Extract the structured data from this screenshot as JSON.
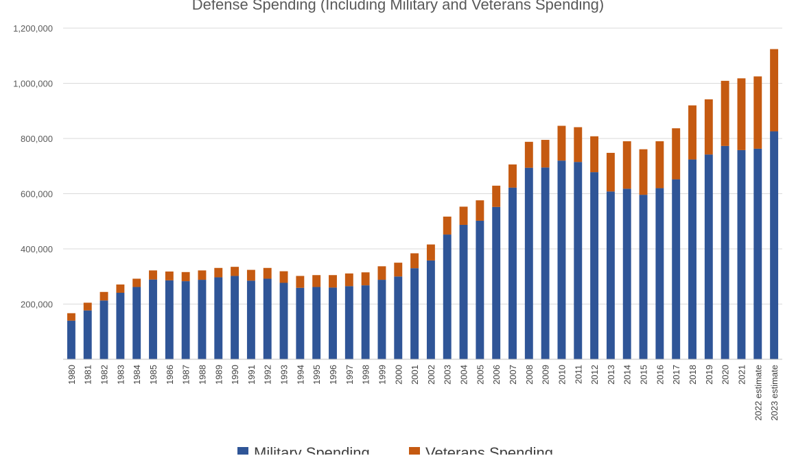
{
  "chart_data": {
    "type": "bar",
    "stacked": true,
    "title": "Defense Spending (Including Military and Veterans Spending)",
    "xlabel": "",
    "ylabel": "",
    "ylim": [
      0,
      1200000
    ],
    "yticks": [
      200000,
      400000,
      600000,
      800000,
      1000000,
      1200000
    ],
    "ytick_labels": [
      "200,000",
      "400,000",
      "600,000",
      "800,000",
      "1,000,000",
      "1,200,000"
    ],
    "grid": true,
    "legend_position": "bottom",
    "categories": [
      "1980",
      "1981",
      "1982",
      "1983",
      "1984",
      "1985",
      "1986",
      "1987",
      "1988",
      "1989",
      "1990",
      "1991",
      "1992",
      "1993",
      "1994",
      "1995",
      "1996",
      "1997",
      "1998",
      "1999",
      "2000",
      "2001",
      "2002",
      "2003",
      "2004",
      "2005",
      "2006",
      "2007",
      "2008",
      "2009",
      "2010",
      "2011",
      "2012",
      "2013",
      "2014",
      "2015",
      "2016",
      "2017",
      "2018",
      "2019",
      "2020",
      "2021",
      "2022 estimate",
      "2023 estimate"
    ],
    "series": [
      {
        "name": "Military Spending",
        "color": "#2f5597",
        "values": [
          140000,
          177000,
          213000,
          241000,
          262000,
          289000,
          286000,
          283000,
          288000,
          297000,
          302000,
          285000,
          292000,
          277000,
          259000,
          262000,
          260000,
          265000,
          268000,
          288000,
          300000,
          330000,
          358000,
          452000,
          487000,
          502000,
          552000,
          622000,
          694000,
          695000,
          720000,
          715000,
          678000,
          608000,
          618000,
          596000,
          620000,
          652000,
          724000,
          742000,
          773000,
          758000,
          763000,
          826000
        ]
      },
      {
        "name": "Veterans Spending",
        "color": "#c55a11",
        "values": [
          27000,
          28000,
          31000,
          30000,
          30000,
          33000,
          32000,
          33000,
          34000,
          34000,
          33000,
          39000,
          39000,
          42000,
          43000,
          43000,
          45000,
          46000,
          47000,
          49000,
          50000,
          54000,
          58000,
          65000,
          66000,
          74000,
          77000,
          84000,
          94000,
          100000,
          126000,
          126000,
          130000,
          140000,
          172000,
          165000,
          170000,
          185000,
          196000,
          200000,
          236000,
          260000,
          262000,
          298000
        ]
      }
    ]
  }
}
